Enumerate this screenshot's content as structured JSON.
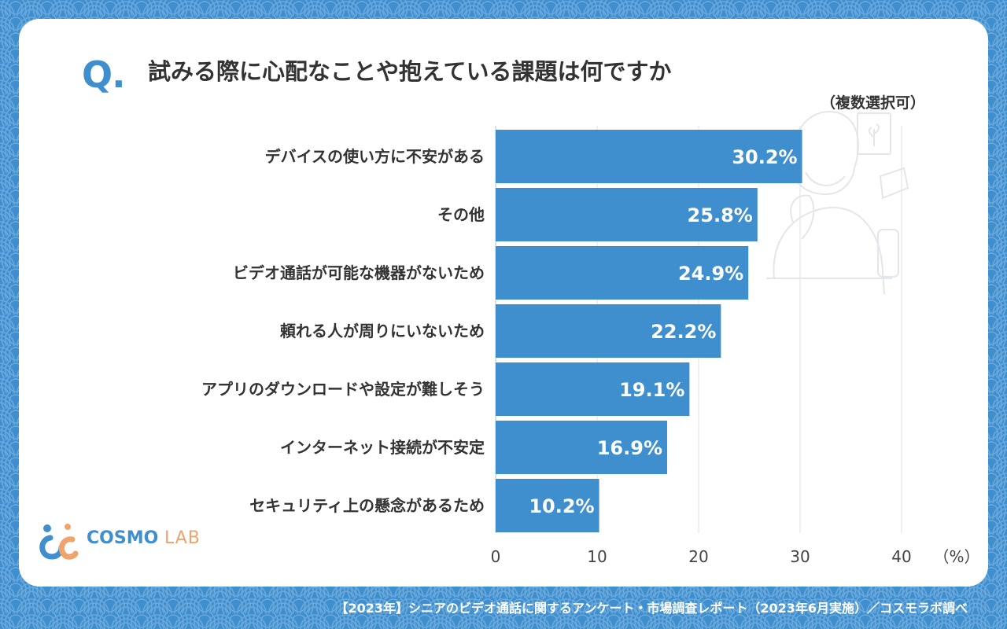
{
  "question": {
    "mark": "Q.",
    "title": "試みる際に心配なことや抱えている課題は何ですか",
    "note": "（複数選択可）"
  },
  "chart_data": {
    "type": "bar",
    "orientation": "horizontal",
    "categories": [
      "デバイスの使い方に不安がある",
      "その他",
      "ビデオ通話が可能な機器がないため",
      "頼れる人が周りにいないため",
      "アプリのダウンロードや設定が難しそう",
      "インターネット接続が不安定",
      "セキュリティ上の懸念があるため"
    ],
    "values": [
      30.2,
      25.8,
      24.9,
      22.2,
      19.1,
      16.9,
      10.2
    ],
    "value_labels": [
      "30.2%",
      "25.8%",
      "24.9%",
      "22.2%",
      "19.1%",
      "16.9%",
      "10.2%"
    ],
    "xlim": [
      0,
      40
    ],
    "xticks": [
      0,
      10,
      20,
      30,
      40
    ],
    "unit_label": "（%）",
    "grid": true,
    "bar_color": "#3f8fcf"
  },
  "logo": {
    "part1": "COSMO",
    "part2": "LAB"
  },
  "footer": "【2023年】シニアのビデオ通話に関するアンケート・市場調査レポート（2023年6月実施）／コスモラボ調べ",
  "colors": {
    "background": "#3f8fcf",
    "card": "#ffffff",
    "accent": "#3f8fcf",
    "logo_orange": "#f0a36b"
  }
}
